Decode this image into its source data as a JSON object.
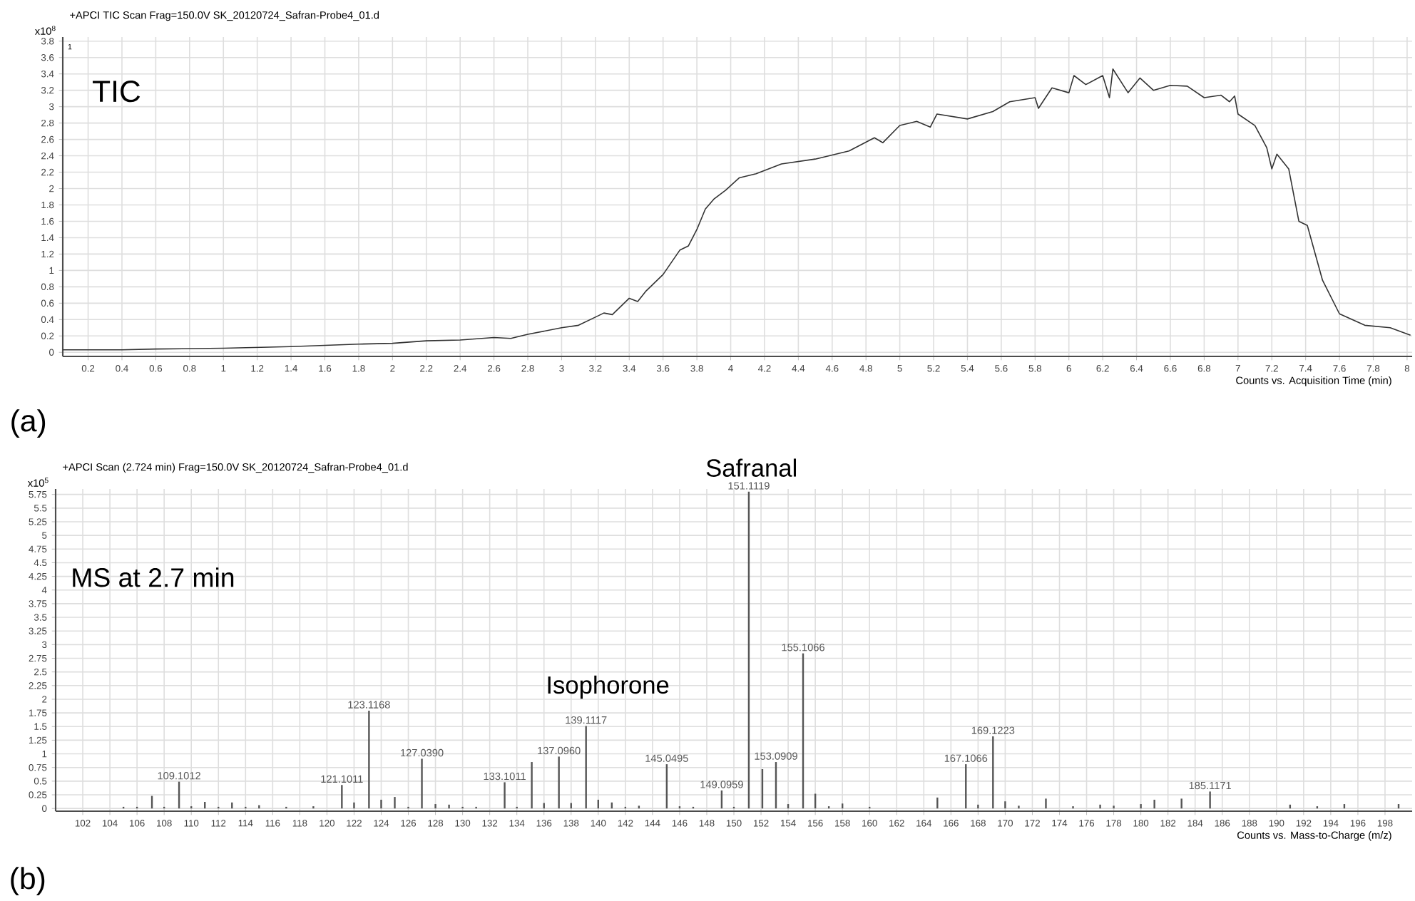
{
  "chart_data": [
    {
      "type": "line",
      "title": "+APCI TIC Scan Frag=150.0V SK_20120724_Safran-Probe4_01.d",
      "xlabel": "Counts vs. Acquisition Time (min)",
      "ylabel": "x10$^{8}$",
      "annotations": [
        "TIC",
        "1",
        "(a)"
      ],
      "x": [
        0.05,
        0.4,
        0.6,
        1.0,
        1.4,
        1.8,
        2.0,
        2.2,
        2.4,
        2.6,
        2.7,
        2.8,
        3.0,
        3.1,
        3.2,
        3.25,
        3.3,
        3.4,
        3.45,
        3.5,
        3.6,
        3.7,
        3.75,
        3.8,
        3.85,
        3.9,
        3.97,
        4.05,
        4.15,
        4.3,
        4.5,
        4.7,
        4.85,
        4.9,
        5.0,
        5.1,
        5.18,
        5.22,
        5.4,
        5.55,
        5.65,
        5.8,
        5.82,
        5.9,
        6.0,
        6.03,
        6.1,
        6.2,
        6.24,
        6.26,
        6.35,
        6.42,
        6.5,
        6.6,
        6.7,
        6.8,
        6.9,
        6.95,
        6.98,
        7.0,
        7.1,
        7.17,
        7.2,
        7.23,
        7.3,
        7.36,
        7.41,
        7.5,
        7.6,
        7.75,
        7.9,
        8.02
      ],
      "values": [
        0.03,
        0.03,
        0.04,
        0.05,
        0.07,
        0.1,
        0.11,
        0.14,
        0.15,
        0.18,
        0.17,
        0.22,
        0.3,
        0.33,
        0.43,
        0.48,
        0.46,
        0.66,
        0.62,
        0.75,
        0.95,
        1.25,
        1.3,
        1.5,
        1.75,
        1.87,
        1.98,
        2.13,
        2.18,
        2.3,
        2.36,
        2.46,
        2.62,
        2.56,
        2.77,
        2.82,
        2.75,
        2.91,
        2.85,
        2.94,
        3.06,
        3.11,
        2.98,
        3.23,
        3.17,
        3.38,
        3.27,
        3.38,
        3.11,
        3.46,
        3.17,
        3.35,
        3.2,
        3.26,
        3.25,
        3.11,
        3.14,
        3.06,
        3.13,
        2.91,
        2.77,
        2.5,
        2.24,
        2.42,
        2.24,
        1.6,
        1.55,
        0.88,
        0.47,
        0.33,
        0.3,
        0.21
      ],
      "color": "#333333",
      "xlim": [
        0.05,
        8.03
      ],
      "ylim": [
        -0.05,
        3.85
      ],
      "xticks": [
        0.2,
        0.4,
        0.6,
        0.8,
        1,
        1.2,
        1.4,
        1.6,
        1.8,
        2,
        2.2,
        2.4,
        2.6,
        2.8,
        3,
        3.2,
        3.4,
        3.6,
        3.8,
        4,
        4.2,
        4.4,
        4.6,
        4.8,
        5,
        5.2,
        5.4,
        5.6,
        5.8,
        6,
        6.2,
        6.4,
        6.6,
        6.8,
        7,
        7.2,
        7.4,
        7.6,
        7.8,
        8
      ],
      "yticks": [
        0,
        0.2,
        0.4,
        0.6,
        0.8,
        1,
        1.2,
        1.4,
        1.6,
        1.8,
        2,
        2.2,
        2.4,
        2.6,
        2.8,
        3,
        3.2,
        3.4,
        3.6,
        3.8
      ],
      "grid": true,
      "line_style": "solid"
    },
    {
      "type": "bar",
      "title": "+APCI Scan (2.724 min) Frag=150.0V SK_20120724_Safran-Probe4_01.d",
      "xlabel": "Counts vs. Mass-to-Charge (m/z)",
      "ylabel": "x10$^{5}$",
      "annotations": [
        "MS at 2.7 min",
        "Isophorone",
        "Safranal",
        "(b)",
        {
          "text": "109.1012",
          "x": 109.1,
          "y": 0.49
        },
        {
          "text": "121.1011",
          "x": 121.1,
          "y": 0.43
        },
        {
          "text": "123.1168",
          "x": 123.1,
          "y": 1.79
        },
        {
          "text": "127.0390",
          "x": 127.0,
          "y": 0.91
        },
        {
          "text": "133.1011",
          "x": 133.1,
          "y": 0.48
        },
        {
          "text": "137.0960",
          "x": 137.1,
          "y": 0.95
        },
        {
          "text": "139.1117",
          "x": 139.1,
          "y": 1.51
        },
        {
          "text": "145.0495",
          "x": 145.05,
          "y": 0.81
        },
        {
          "text": "149.0959",
          "x": 149.1,
          "y": 0.33
        },
        {
          "text": "151.1119",
          "x": 151.1,
          "y": 5.8
        },
        {
          "text": "153.0909",
          "x": 153.1,
          "y": 0.85
        },
        {
          "text": "155.1066",
          "x": 155.1,
          "y": 2.84
        },
        {
          "text": "167.1066",
          "x": 167.1,
          "y": 0.81
        },
        {
          "text": "169.1223",
          "x": 169.1,
          "y": 1.32
        },
        {
          "text": "185.1171",
          "x": 185.1,
          "y": 0.31
        }
      ],
      "x": [
        105,
        106,
        107.1,
        108,
        109.1,
        110,
        111,
        112,
        113,
        114,
        115,
        117,
        119,
        121.1,
        122,
        123.1,
        124,
        125,
        126,
        127.0,
        128,
        129,
        130,
        131,
        133.1,
        134,
        135.1,
        136,
        137.1,
        138,
        139.1,
        140,
        141,
        142,
        143,
        145.05,
        146,
        147,
        149.1,
        150,
        151.1,
        152.1,
        153.1,
        154,
        155.1,
        156,
        157,
        158,
        160,
        165,
        167.1,
        168,
        169.1,
        170,
        171,
        173,
        175,
        177,
        178,
        180,
        181,
        183,
        185.1,
        191,
        193,
        195,
        199
      ],
      "values": [
        0.03,
        0.03,
        0.23,
        0.03,
        0.49,
        0.04,
        0.12,
        0.03,
        0.11,
        0.03,
        0.06,
        0.03,
        0.04,
        0.43,
        0.11,
        1.79,
        0.16,
        0.21,
        0.03,
        0.91,
        0.08,
        0.07,
        0.03,
        0.03,
        0.48,
        0.03,
        0.85,
        0.1,
        0.95,
        0.1,
        1.51,
        0.16,
        0.11,
        0.03,
        0.05,
        0.81,
        0.04,
        0.03,
        0.33,
        0.03,
        5.8,
        0.72,
        0.85,
        0.08,
        2.84,
        0.27,
        0.04,
        0.09,
        0.03,
        0.2,
        0.81,
        0.07,
        1.32,
        0.13,
        0.05,
        0.18,
        0.04,
        0.07,
        0.05,
        0.08,
        0.16,
        0.18,
        0.31,
        0.07,
        0.04,
        0.08,
        0.08
      ],
      "color": "#555555",
      "xlim": [
        100,
        200
      ],
      "ylim": [
        -0.05,
        5.85
      ],
      "xticks": [
        102,
        104,
        106,
        108,
        110,
        112,
        114,
        116,
        118,
        120,
        122,
        124,
        126,
        128,
        130,
        132,
        134,
        136,
        138,
        140,
        142,
        144,
        146,
        148,
        150,
        152,
        154,
        156,
        158,
        160,
        162,
        164,
        166,
        168,
        170,
        172,
        174,
        176,
        178,
        180,
        182,
        184,
        186,
        188,
        190,
        192,
        194,
        196,
        198
      ],
      "yticks": [
        0,
        0.25,
        0.5,
        0.75,
        1,
        1.25,
        1.5,
        1.75,
        2,
        2.25,
        2.5,
        2.75,
        3,
        3.25,
        3.5,
        3.75,
        4,
        4.25,
        4.5,
        4.75,
        5,
        5.25,
        5.5,
        5.75
      ],
      "grid": true
    }
  ]
}
